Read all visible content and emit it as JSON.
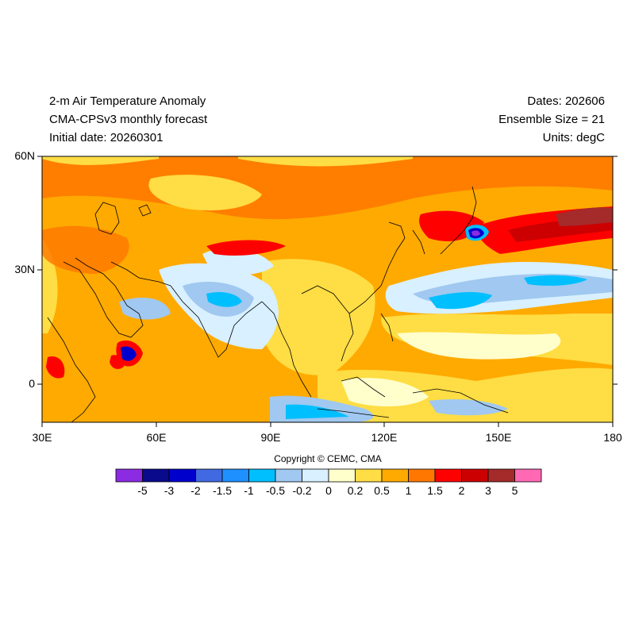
{
  "title": {
    "line1": "2-m Air Temperature Anomaly",
    "line2": "CMA-CPSv3 monthly forecast",
    "line3": "Initial date: 20260301"
  },
  "info": {
    "dates": "Dates: 202606",
    "ensemble": "Ensemble Size = 21",
    "units": "Units: degC"
  },
  "axes": {
    "lat_labels": [
      "60N",
      "30N",
      "0"
    ],
    "lon_labels": [
      "30E",
      "60E",
      "90E",
      "120E",
      "150E",
      "180"
    ]
  },
  "copyright": "Copyright © CEMC, CMA",
  "colorbar": {
    "colors": [
      "#8b2be2",
      "#0a0a8c",
      "#0000cd",
      "#4169e1",
      "#1e90ff",
      "#00bfff",
      "#a0c8f0",
      "#d8f0ff",
      "#ffffcc",
      "#ffdd44",
      "#ffaa00",
      "#ff7700",
      "#ff0000",
      "#cc0000",
      "#a52a2a",
      "#ff69b4"
    ],
    "labels": [
      "-5",
      "-3",
      "-2",
      "-1.5",
      "-1",
      "-0.5",
      "-0.2",
      "0",
      "0.2",
      "0.5",
      "1",
      "1.5",
      "2",
      "3",
      "5"
    ]
  }
}
